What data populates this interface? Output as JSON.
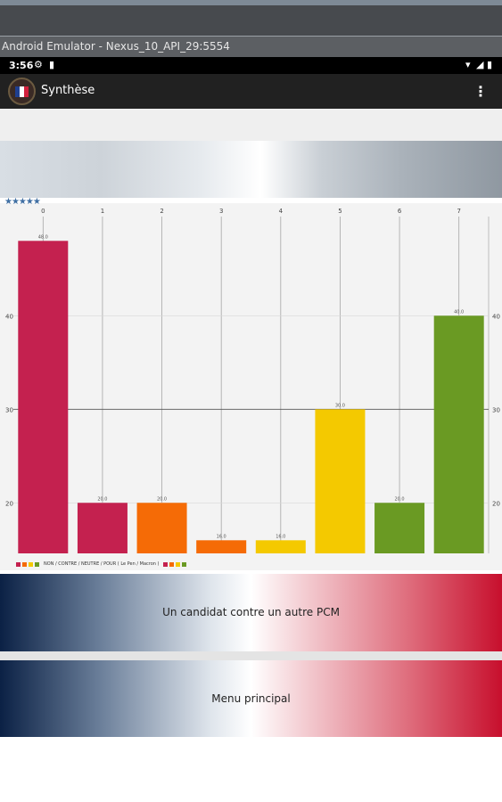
{
  "emulator": {
    "title": "Android Emulator - Nexus_10_API_29:5554"
  },
  "statusbar": {
    "time": "3:56"
  },
  "appbar": {
    "title": "Synthèse",
    "overflow_icon": "more-vert-icon"
  },
  "rating": {
    "stars": "★★★★★"
  },
  "colors": {
    "crimson": "#c4214f",
    "orange": "#f56b06",
    "yellow": "#f4c900",
    "green": "#6a9a23"
  },
  "chart_data": {
    "type": "bar",
    "categories": [
      "0",
      "1",
      "2",
      "3",
      "4",
      "5",
      "6",
      "7"
    ],
    "values": [
      48.0,
      20.0,
      20.0,
      16.0,
      16.0,
      30.0,
      20.0,
      40.0
    ],
    "value_labels": [
      "48.0",
      "20.0",
      "20.0",
      "16.0",
      "16.0",
      "30.0",
      "20.0",
      "40.0"
    ],
    "bar_colors": [
      "#c4214f",
      "#c4214f",
      "#f56b06",
      "#f56b06",
      "#f4c900",
      "#f4c900",
      "#6a9a23",
      "#6a9a23"
    ],
    "yticks": [
      20,
      30,
      40
    ],
    "ytick_labels": [
      "20",
      "30",
      "40"
    ],
    "ylim": [
      14.6,
      50.6
    ],
    "legend": "NON / CONTRE / NEUTRE / POUR ( Le Pen / Macron )",
    "legend_colors": [
      "#c4214f",
      "#f56b06",
      "#f4c900",
      "#6a9a23"
    ]
  },
  "buttons": {
    "candidate": "Un candidat contre un autre PCM",
    "main_menu": "Menu principal"
  }
}
